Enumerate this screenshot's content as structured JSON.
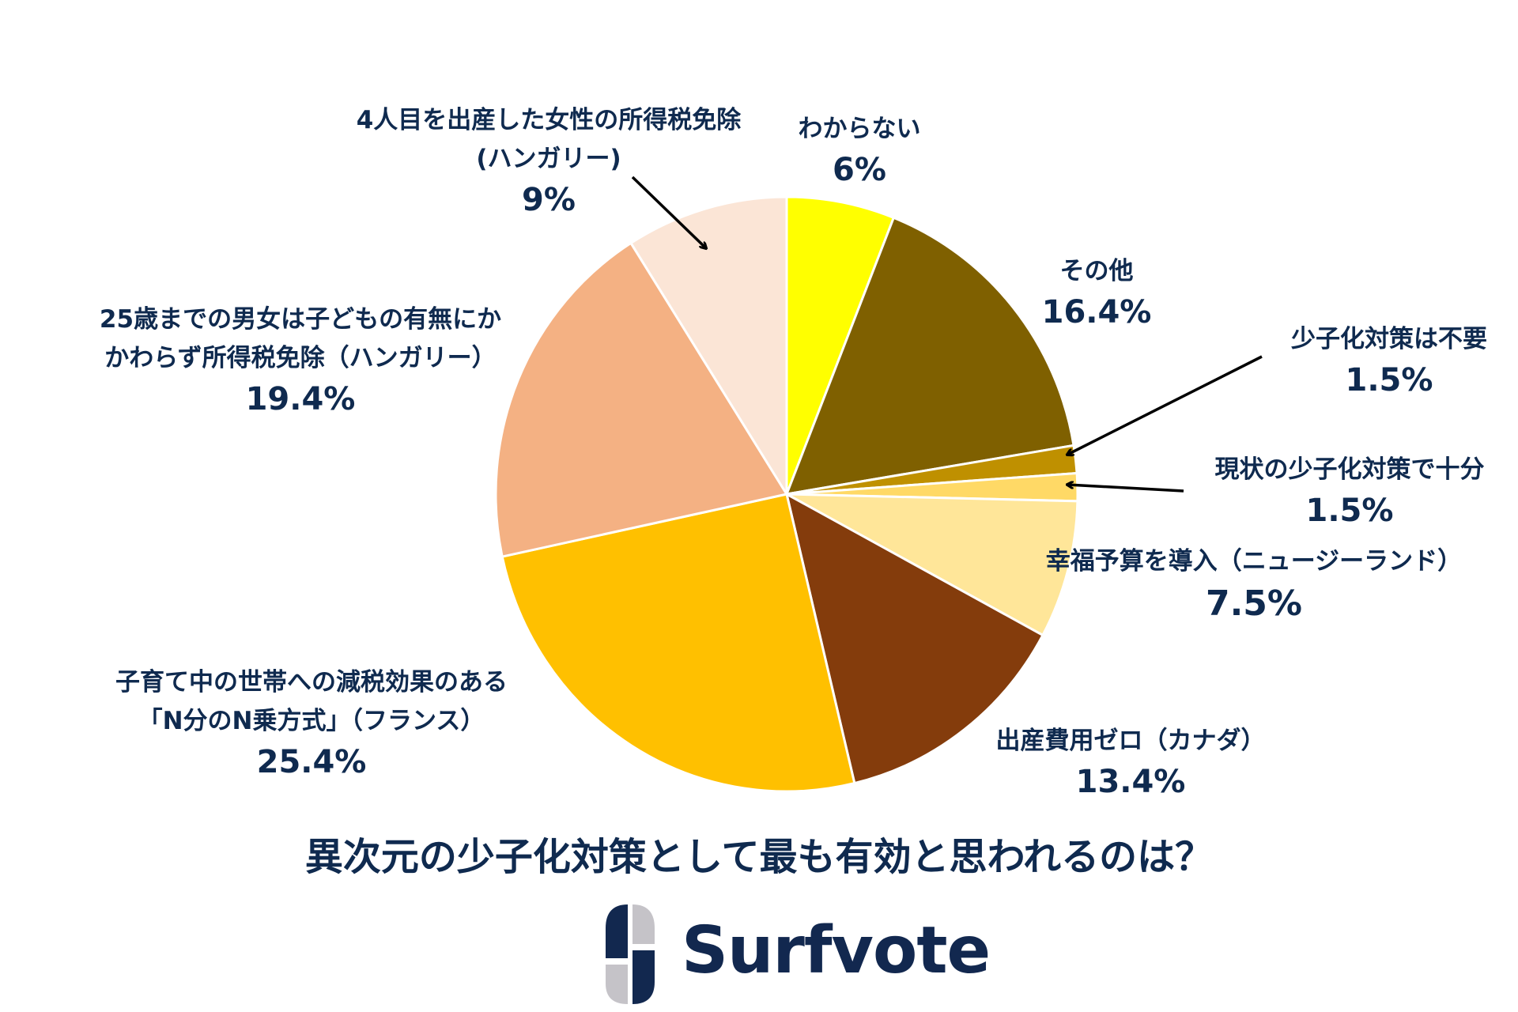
{
  "chart_data": {
    "type": "pie",
    "title": "異次元の少子化対策として最も有効と思われるのは？",
    "start_angle": "12 o'clock, clockwise",
    "categories": [
      "わからない",
      "その他",
      "少子化対策は不要",
      "現状の少子化対策で十分",
      "幸福予算を導入（ニュージーランド）",
      "出産費用ゼロ（カナダ）",
      "子育て中の世帯への減税効果のある「N分のN乗方式」（フランス）",
      "25歳までの男女は子どもの有無にかかわらず所得税免除（ハンガリー）",
      "4人目を出産した女性の所得税免除（ハンガリー）"
    ],
    "values": [
      6,
      16.4,
      1.5,
      1.5,
      7.5,
      13.4,
      25.4,
      19.4,
      9
    ],
    "colors": [
      "#FFFF00",
      "#7F6000",
      "#BF9000",
      "#FFD966",
      "#FFE699",
      "#843C0C",
      "#FFC000",
      "#F4B183",
      "#FBE5D6"
    ],
    "legend": "none (direct labels)"
  },
  "labels": {
    "wakaranai": {
      "lines": [
        "わからない"
      ],
      "pct": "6%"
    },
    "sonota": {
      "lines": [
        "その他"
      ],
      "pct": "16.4%"
    },
    "fuyou": {
      "lines": [
        "少子化対策は不要"
      ],
      "pct": "1.5%"
    },
    "juubun": {
      "lines": [
        "現状の少子化対策で十分"
      ],
      "pct": "1.5%"
    },
    "koufuku": {
      "lines": [
        "幸福予算を導入（ニュージーランド）"
      ],
      "pct": "7.5%"
    },
    "shussan": {
      "lines": [
        "出産費用ゼロ（カナダ）"
      ],
      "pct": "13.4%"
    },
    "nbun": {
      "lines": [
        "子育て中の世帯への減税効果のある",
        "「N分のN乗方式」（フランス）"
      ],
      "pct": "25.4%"
    },
    "age25": {
      "lines": [
        "25歳までの男女は子どもの有無にか",
        "かわらず所得税免除（ハンガリー）"
      ],
      "pct": "19.4%"
    },
    "fourth": {
      "lines": [
        "4人目を出産した女性の所得税免除",
        "(ハンガリー)"
      ],
      "pct": "9%"
    }
  },
  "title": "異次元の少子化対策として最も有効と思われるのは？",
  "logo": {
    "text": "Surfvote",
    "navy": "#12284F",
    "gray": "#C5C3C8"
  },
  "text_color": "#0F2A4F"
}
